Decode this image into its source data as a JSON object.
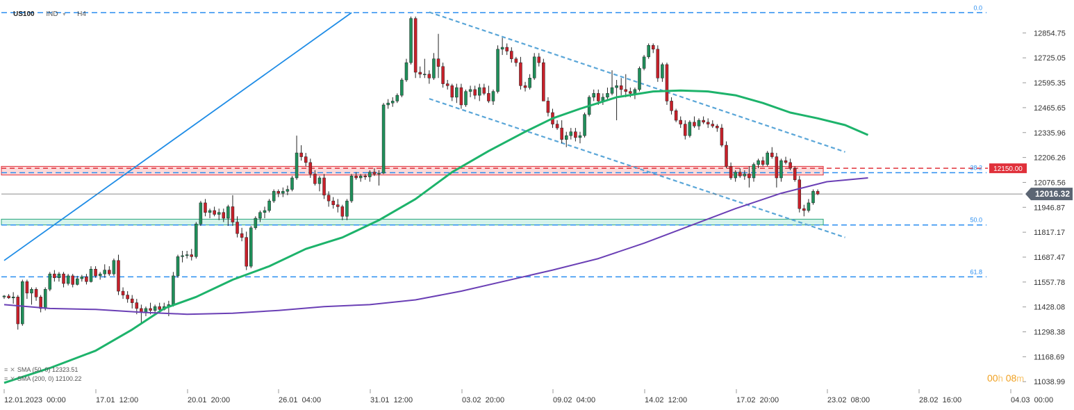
{
  "header": {
    "symbol": "US100",
    "type": "IND",
    "timeframe": "H4"
  },
  "timer": {
    "hours": "00",
    "hours_unit": "h",
    "minutes": "08",
    "minutes_unit": "m"
  },
  "indicators": [
    {
      "label": "SMA (50, 0)",
      "value": "12323.51",
      "color": "#1db36b"
    },
    {
      "label": "SMA (200, 0)",
      "value": "12100.22",
      "color": "#6a3fb5"
    }
  ],
  "colors": {
    "bull": "#1f8f5a",
    "bear": "#c8202a",
    "level": "#2a8ef0",
    "channel": "#5aa6d8",
    "trend": "#1e8ce6",
    "resistance": "#e0303a",
    "support": "#2aa57a"
  },
  "chart_data": {
    "type": "candlestick",
    "symbol": "US100",
    "timeframe": "H4",
    "ylim": [
      11000,
      12990
    ],
    "y_ticks": [
      12854.75,
      12725.05,
      12595.35,
      12465.65,
      12335.96,
      12206.26,
      12076.56,
      11946.87,
      11817.17,
      11687.47,
      11557.78,
      11428.08,
      11298.38,
      11168.69,
      11038.99
    ],
    "x_ticks": [
      "12.01.2023  00:00",
      "17.01  12:00",
      "20.01  20:00",
      "26.01  04:00",
      "31.01  12:00",
      "03.02  20:00",
      "09.02  04:00",
      "14.02  12:00",
      "17.02  20:00",
      "23.02  08:00",
      "28.02  16:00",
      "04.03  00:00"
    ],
    "x_range_index": [
      0,
      221
    ],
    "last_price": "12016.32",
    "price_alert": "12150.00",
    "fib_levels": [
      {
        "label": "0.0",
        "value": 12960
      },
      {
        "label": "38.2",
        "value": 12127
      },
      {
        "label": "50.0",
        "value": 11855
      },
      {
        "label": "61.8",
        "value": 11585
      }
    ],
    "zones": [
      {
        "type": "resistance",
        "from": 12115,
        "to": 12160
      },
      {
        "type": "support",
        "from": 11855,
        "to": 11885
      }
    ],
    "trendline": {
      "from": [
        0,
        11670
      ],
      "to": [
        76,
        12960
      ]
    },
    "channel": [
      {
        "from": [
          93,
          12963
        ],
        "to": [
          184,
          12235
        ]
      },
      {
        "from": [
          93,
          12512
        ],
        "to": [
          184,
          11790
        ]
      }
    ],
    "series": [
      {
        "name": "SMA (50, 0)",
        "value": 12323.51,
        "points": [
          [
            0,
            11033
          ],
          [
            10,
            11110
          ],
          [
            20,
            11200
          ],
          [
            28,
            11310
          ],
          [
            35,
            11420
          ],
          [
            42,
            11480
          ],
          [
            50,
            11570
          ],
          [
            58,
            11640
          ],
          [
            66,
            11730
          ],
          [
            74,
            11790
          ],
          [
            82,
            11880
          ],
          [
            90,
            11990
          ],
          [
            98,
            12130
          ],
          [
            106,
            12240
          ],
          [
            114,
            12340
          ],
          [
            120,
            12410
          ],
          [
            126,
            12460
          ],
          [
            134,
            12520
          ],
          [
            142,
            12550
          ],
          [
            148,
            12555
          ],
          [
            154,
            12550
          ],
          [
            160,
            12530
          ],
          [
            166,
            12490
          ],
          [
            172,
            12440
          ],
          [
            178,
            12410
          ],
          [
            184,
            12375
          ],
          [
            189,
            12323
          ]
        ]
      },
      {
        "name": "SMA (200, 0)",
        "value": 12100.22,
        "points": [
          [
            0,
            11440
          ],
          [
            10,
            11420
          ],
          [
            20,
            11415
          ],
          [
            30,
            11400
          ],
          [
            40,
            11390
          ],
          [
            50,
            11395
          ],
          [
            60,
            11410
          ],
          [
            70,
            11430
          ],
          [
            80,
            11440
          ],
          [
            90,
            11465
          ],
          [
            100,
            11510
          ],
          [
            110,
            11565
          ],
          [
            120,
            11620
          ],
          [
            130,
            11680
          ],
          [
            140,
            11760
          ],
          [
            150,
            11850
          ],
          [
            160,
            11940
          ],
          [
            170,
            12020
          ],
          [
            180,
            12080
          ],
          [
            189,
            12100
          ]
        ]
      }
    ],
    "candles": [
      [
        11480,
        11490,
        11470,
        11485
      ],
      [
        11485,
        11495,
        11470,
        11475
      ],
      [
        11475,
        11505,
        11445,
        11480
      ],
      [
        11480,
        11490,
        11310,
        11340
      ],
      [
        11340,
        11570,
        11330,
        11560
      ],
      [
        11560,
        11570,
        11470,
        11500
      ],
      [
        11500,
        11530,
        11440,
        11520
      ],
      [
        11520,
        11530,
        11460,
        11480
      ],
      [
        11480,
        11490,
        11400,
        11420
      ],
      [
        11420,
        11530,
        11410,
        11520
      ],
      [
        11520,
        11610,
        11510,
        11600
      ],
      [
        11600,
        11620,
        11560,
        11580
      ],
      [
        11580,
        11610,
        11560,
        11600
      ],
      [
        11600,
        11610,
        11530,
        11550
      ],
      [
        11550,
        11600,
        11540,
        11590
      ],
      [
        11590,
        11600,
        11530,
        11545
      ],
      [
        11545,
        11590,
        11540,
        11575
      ],
      [
        11575,
        11595,
        11560,
        11585
      ],
      [
        11585,
        11600,
        11545,
        11560
      ],
      [
        11560,
        11640,
        11555,
        11625
      ],
      [
        11625,
        11640,
        11580,
        11590
      ],
      [
        11590,
        11610,
        11570,
        11600
      ],
      [
        11600,
        11650,
        11580,
        11620
      ],
      [
        11620,
        11640,
        11590,
        11600
      ],
      [
        11600,
        11680,
        11590,
        11670
      ],
      [
        11670,
        11700,
        11490,
        11510
      ],
      [
        11510,
        11530,
        11470,
        11490
      ],
      [
        11490,
        11510,
        11450,
        11470
      ],
      [
        11470,
        11490,
        11420,
        11450
      ],
      [
        11450,
        11470,
        11390,
        11420
      ],
      [
        11420,
        11440,
        11340,
        11400
      ],
      [
        11400,
        11430,
        11380,
        11420
      ],
      [
        11420,
        11450,
        11390,
        11410
      ],
      [
        11410,
        11440,
        11395,
        11430
      ],
      [
        11430,
        11450,
        11400,
        11415
      ],
      [
        11415,
        11450,
        11410,
        11430
      ],
      [
        11430,
        11460,
        11380,
        11440
      ],
      [
        11440,
        11610,
        11430,
        11590
      ],
      [
        11590,
        11700,
        11580,
        11690
      ],
      [
        11690,
        11720,
        11660,
        11695
      ],
      [
        11695,
        11720,
        11680,
        11700
      ],
      [
        11700,
        11730,
        11670,
        11690
      ],
      [
        11690,
        11870,
        11680,
        11860
      ],
      [
        11860,
        11980,
        11850,
        11970
      ],
      [
        11970,
        11990,
        11900,
        11920
      ],
      [
        11920,
        11940,
        11890,
        11930
      ],
      [
        11930,
        11950,
        11900,
        11910
      ],
      [
        11910,
        11940,
        11880,
        11920
      ],
      [
        11920,
        11940,
        11870,
        11890
      ],
      [
        11890,
        11960,
        11850,
        11950
      ],
      [
        11950,
        12010,
        11850,
        11870
      ],
      [
        11870,
        11900,
        11790,
        11810
      ],
      [
        11810,
        11840,
        11770,
        11790
      ],
      [
        11790,
        11820,
        11620,
        11640
      ],
      [
        11640,
        11850,
        11630,
        11840
      ],
      [
        11840,
        11900,
        11830,
        11890
      ],
      [
        11890,
        11930,
        11870,
        11920
      ],
      [
        11920,
        11950,
        11890,
        11930
      ],
      [
        11930,
        11990,
        11920,
        11980
      ],
      [
        11980,
        12040,
        11970,
        12030
      ],
      [
        12030,
        12040,
        12000,
        12020
      ],
      [
        12020,
        12050,
        12000,
        12030
      ],
      [
        12030,
        12060,
        12010,
        12040
      ],
      [
        12040,
        12110,
        12030,
        12100
      ],
      [
        12100,
        12320,
        12090,
        12230
      ],
      [
        12230,
        12270,
        12190,
        12210
      ],
      [
        12210,
        12230,
        12160,
        12180
      ],
      [
        12180,
        12200,
        12100,
        12120
      ],
      [
        12120,
        12140,
        12060,
        12070
      ],
      [
        12070,
        12110,
        12030,
        12100
      ],
      [
        12100,
        12120,
        11990,
        12010
      ],
      [
        12010,
        12030,
        11950,
        11980
      ],
      [
        11980,
        12000,
        11940,
        11960
      ],
      [
        11960,
        11990,
        11920,
        11950
      ],
      [
        11950,
        11960,
        11880,
        11900
      ],
      [
        11900,
        11990,
        11880,
        11980
      ],
      [
        11980,
        12120,
        11970,
        12110
      ],
      [
        12110,
        12130,
        12090,
        12100
      ],
      [
        12100,
        12120,
        12080,
        12110
      ],
      [
        12110,
        12120,
        12090,
        12105
      ],
      [
        12105,
        12140,
        12080,
        12130
      ],
      [
        12130,
        12150,
        12110,
        12120
      ],
      [
        12120,
        12140,
        12060,
        12125
      ],
      [
        12125,
        12490,
        12120,
        12480
      ],
      [
        12480,
        12510,
        12460,
        12490
      ],
      [
        12490,
        12520,
        12470,
        12500
      ],
      [
        12500,
        12540,
        12490,
        12530
      ],
      [
        12530,
        12620,
        12520,
        12610
      ],
      [
        12610,
        12720,
        12600,
        12700
      ],
      [
        12700,
        12940,
        12690,
        12930
      ],
      [
        12930,
        12940,
        12620,
        12650
      ],
      [
        12650,
        12680,
        12620,
        12640
      ],
      [
        12640,
        12720,
        12620,
        12640
      ],
      [
        12640,
        12660,
        12590,
        12620
      ],
      [
        12620,
        12750,
        12610,
        12720
      ],
      [
        12720,
        12850,
        12620,
        12680
      ],
      [
        12680,
        12700,
        12570,
        12590
      ],
      [
        12590,
        12610,
        12560,
        12580
      ],
      [
        12580,
        12590,
        12500,
        12520
      ],
      [
        12520,
        12590,
        12490,
        12570
      ],
      [
        12570,
        12590,
        12460,
        12480
      ],
      [
        12480,
        12560,
        12470,
        12550
      ],
      [
        12550,
        12580,
        12520,
        12560
      ],
      [
        12560,
        12580,
        12510,
        12530
      ],
      [
        12530,
        12590,
        12500,
        12570
      ],
      [
        12570,
        12590,
        12530,
        12540
      ],
      [
        12540,
        12580,
        12490,
        12500
      ],
      [
        12500,
        12560,
        12480,
        12550
      ],
      [
        12550,
        12790,
        12540,
        12770
      ],
      [
        12770,
        12830,
        12740,
        12780
      ],
      [
        12780,
        12800,
        12740,
        12760
      ],
      [
        12760,
        12780,
        12700,
        12720
      ],
      [
        12720,
        12730,
        12680,
        12700
      ],
      [
        12700,
        12730,
        12560,
        12580
      ],
      [
        12580,
        12600,
        12550,
        12570
      ],
      [
        12570,
        12640,
        12560,
        12620
      ],
      [
        12620,
        12750,
        12610,
        12730
      ],
      [
        12730,
        12750,
        12680,
        12700
      ],
      [
        12700,
        12720,
        12500,
        12500
      ],
      [
        12500,
        12520,
        12420,
        12440
      ],
      [
        12440,
        12460,
        12360,
        12380
      ],
      [
        12380,
        12400,
        12350,
        12360
      ],
      [
        12360,
        12400,
        12280,
        12300
      ],
      [
        12300,
        12340,
        12260,
        12320
      ],
      [
        12320,
        12360,
        12300,
        12340
      ],
      [
        12340,
        12360,
        12290,
        12310
      ],
      [
        12310,
        12340,
        12280,
        12320
      ],
      [
        12320,
        12440,
        12310,
        12430
      ],
      [
        12430,
        12530,
        12420,
        12520
      ],
      [
        12520,
        12560,
        12500,
        12540
      ],
      [
        12540,
        12560,
        12480,
        12500
      ],
      [
        12500,
        12540,
        12480,
        12520
      ],
      [
        12520,
        12570,
        12500,
        12540
      ],
      [
        12540,
        12660,
        12530,
        12570
      ],
      [
        12570,
        12610,
        12400,
        12580
      ],
      [
        12580,
        12620,
        12530,
        12560
      ],
      [
        12560,
        12640,
        12520,
        12550
      ],
      [
        12550,
        12570,
        12520,
        12540
      ],
      [
        12540,
        12570,
        12510,
        12560
      ],
      [
        12560,
        12680,
        12550,
        12670
      ],
      [
        12670,
        12740,
        12660,
        12730
      ],
      [
        12730,
        12800,
        12720,
        12790
      ],
      [
        12790,
        12800,
        12750,
        12770
      ],
      [
        12770,
        12790,
        12600,
        12620
      ],
      [
        12620,
        12700,
        12600,
        12690
      ],
      [
        12690,
        12700,
        12480,
        12500
      ],
      [
        12500,
        12520,
        12430,
        12450
      ],
      [
        12450,
        12460,
        12390,
        12400
      ],
      [
        12400,
        12420,
        12360,
        12380
      ],
      [
        12380,
        12400,
        12300,
        12320
      ],
      [
        12320,
        12400,
        12310,
        12390
      ],
      [
        12390,
        12420,
        12360,
        12370
      ],
      [
        12370,
        12410,
        12350,
        12400
      ],
      [
        12400,
        12420,
        12380,
        12390
      ],
      [
        12390,
        12410,
        12360,
        12380
      ],
      [
        12380,
        12400,
        12360,
        12370
      ],
      [
        12370,
        12380,
        12340,
        12360
      ],
      [
        12360,
        12380,
        12260,
        12270
      ],
      [
        12270,
        12290,
        12150,
        12160
      ],
      [
        12160,
        12180,
        12090,
        12100
      ],
      [
        12100,
        12140,
        12080,
        12130
      ],
      [
        12130,
        12150,
        12100,
        12110
      ],
      [
        12110,
        12140,
        12090,
        12120
      ],
      [
        12120,
        12160,
        12050,
        12100
      ],
      [
        12100,
        12180,
        12080,
        12170
      ],
      [
        12170,
        12200,
        12150,
        12190
      ],
      [
        12190,
        12210,
        12160,
        12170
      ],
      [
        12170,
        12240,
        12160,
        12230
      ],
      [
        12230,
        12260,
        12200,
        12210
      ],
      [
        12210,
        12230,
        12050,
        12100
      ],
      [
        12100,
        12200,
        12080,
        12190
      ],
      [
        12190,
        12210,
        12170,
        12180
      ],
      [
        12180,
        12200,
        12140,
        12150
      ],
      [
        12150,
        12160,
        12080,
        12090
      ],
      [
        12090,
        12110,
        11920,
        11940
      ],
      [
        11940,
        11960,
        11900,
        11930
      ],
      [
        11930,
        11990,
        11920,
        11970
      ],
      [
        11970,
        12040,
        11960,
        12030
      ],
      [
        12030,
        12040,
        12010,
        12016
      ]
    ]
  }
}
